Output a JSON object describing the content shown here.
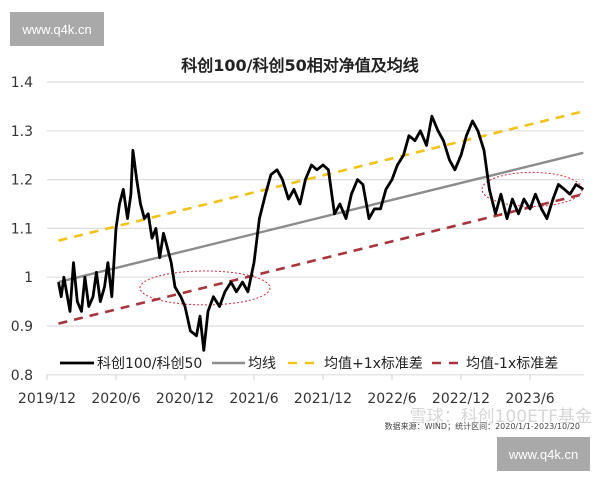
{
  "watermarks": {
    "top_left": "www.q4k.cn",
    "bottom_right": "www.q4k.cn",
    "weibo": "雪球：科创100ETF基金"
  },
  "source_note": "数据来源：WIND；统计区间：2020/1/1-2023/10/20",
  "colors": {
    "ratio": "#000000",
    "mean": "#8c8c8c",
    "upper": "#f2c218",
    "lower": "#a8353c",
    "highlight": "#d9293a"
  },
  "chart_data": {
    "type": "line",
    "title": "科创100/科创50相对净值及均线",
    "xlabel": "",
    "ylabel": "",
    "ylim": [
      0.8,
      1.4
    ],
    "yticks": [
      "0.8",
      "0.9",
      "1",
      "1.1",
      "1.2",
      "1.3",
      "1.4"
    ],
    "xticks": [
      "2019/12",
      "2020/6",
      "2020/12",
      "2021/6",
      "2021/12",
      "2022/6",
      "2022/12",
      "2023/6"
    ],
    "grid": true,
    "legend_position": "bottom-inside",
    "series": [
      {
        "name": "科创100/科创50",
        "x": [
          "2020-01-01",
          "2020-01-08",
          "2020-01-15",
          "2020-01-22",
          "2020-02-01",
          "2020-02-10",
          "2020-02-20",
          "2020-03-01",
          "2020-03-10",
          "2020-03-20",
          "2020-04-01",
          "2020-04-10",
          "2020-04-20",
          "2020-05-01",
          "2020-05-10",
          "2020-05-20",
          "2020-06-01",
          "2020-06-10",
          "2020-06-20",
          "2020-07-01",
          "2020-07-10",
          "2020-07-15",
          "2020-07-25",
          "2020-08-05",
          "2020-08-15",
          "2020-08-25",
          "2020-09-05",
          "2020-09-15",
          "2020-09-25",
          "2020-10-05",
          "2020-10-15",
          "2020-10-25",
          "2020-11-05",
          "2020-11-20",
          "2020-12-01",
          "2020-12-15",
          "2021-01-01",
          "2021-01-10",
          "2021-01-20",
          "2021-02-01",
          "2021-02-15",
          "2021-03-01",
          "2021-03-15",
          "2021-04-01",
          "2021-04-15",
          "2021-05-01",
          "2021-05-15",
          "2021-06-01",
          "2021-06-15",
          "2021-07-01",
          "2021-07-15",
          "2021-08-01",
          "2021-08-15",
          "2021-09-01",
          "2021-09-15",
          "2021-10-01",
          "2021-10-15",
          "2021-11-01",
          "2021-11-15",
          "2021-12-01",
          "2021-12-15",
          "2022-01-01",
          "2022-01-15",
          "2022-02-01",
          "2022-02-15",
          "2022-03-01",
          "2022-03-15",
          "2022-04-01",
          "2022-04-15",
          "2022-05-01",
          "2022-05-15",
          "2022-06-01",
          "2022-06-15",
          "2022-07-01",
          "2022-07-15",
          "2022-08-01",
          "2022-08-15",
          "2022-09-01",
          "2022-09-15",
          "2022-10-01",
          "2022-10-15",
          "2022-11-01",
          "2022-11-15",
          "2022-12-01",
          "2022-12-15",
          "2023-01-01",
          "2023-01-15",
          "2023-02-01",
          "2023-02-15",
          "2023-03-01",
          "2023-03-15",
          "2023-04-01",
          "2023-04-15",
          "2023-05-01",
          "2023-05-15",
          "2023-06-01",
          "2023-06-15",
          "2023-07-01",
          "2023-07-15",
          "2023-08-01",
          "2023-08-15",
          "2023-09-01",
          "2023-09-15",
          "2023-10-01",
          "2023-10-20"
        ],
        "y": [
          0.99,
          0.96,
          1.0,
          0.97,
          0.93,
          1.03,
          0.95,
          0.93,
          1.0,
          0.94,
          0.96,
          1.01,
          0.95,
          0.98,
          1.03,
          0.96,
          1.1,
          1.15,
          1.18,
          1.12,
          1.17,
          1.26,
          1.2,
          1.15,
          1.12,
          1.13,
          1.08,
          1.1,
          1.04,
          1.09,
          1.06,
          1.03,
          0.98,
          0.96,
          0.94,
          0.89,
          0.88,
          0.92,
          0.85,
          0.93,
          0.96,
          0.94,
          0.97,
          0.99,
          0.97,
          0.99,
          0.97,
          1.03,
          1.12,
          1.17,
          1.21,
          1.22,
          1.2,
          1.16,
          1.18,
          1.15,
          1.2,
          1.23,
          1.22,
          1.23,
          1.22,
          1.13,
          1.15,
          1.12,
          1.17,
          1.2,
          1.19,
          1.12,
          1.14,
          1.14,
          1.18,
          1.2,
          1.23,
          1.25,
          1.29,
          1.28,
          1.3,
          1.27,
          1.33,
          1.3,
          1.28,
          1.24,
          1.22,
          1.25,
          1.29,
          1.32,
          1.3,
          1.26,
          1.18,
          1.13,
          1.17,
          1.12,
          1.16,
          1.13,
          1.16,
          1.14,
          1.17,
          1.14,
          1.12,
          1.16,
          1.19,
          1.18,
          1.17,
          1.19,
          1.18
        ]
      },
      {
        "name": "均线",
        "x": [
          "2020-01-01",
          "2023-10-20"
        ],
        "y": [
          0.99,
          1.255
        ]
      },
      {
        "name": "均值+1x标准差",
        "x": [
          "2020-01-01",
          "2023-10-20"
        ],
        "y": [
          1.075,
          1.34
        ]
      },
      {
        "name": "均值-1x标准差",
        "x": [
          "2020-01-01",
          "2023-10-20"
        ],
        "y": [
          0.905,
          1.17
        ]
      }
    ]
  }
}
